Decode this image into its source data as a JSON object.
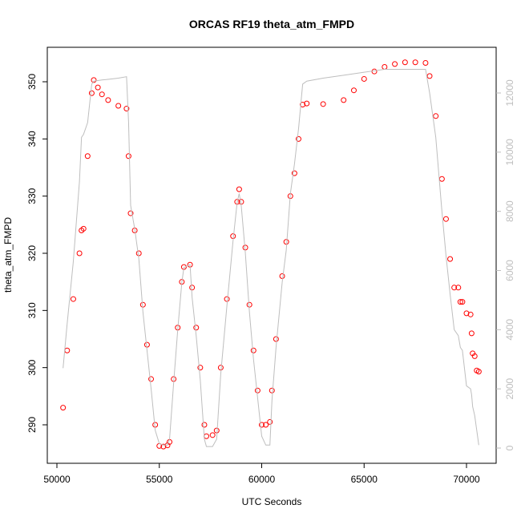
{
  "chart_data": {
    "type": "scatter",
    "title": "ORCAS RF19 theta_atm_FMPD",
    "x_label": "UTC Seconds",
    "y_label": "theta_atm_FMPD",
    "x": [
      50300,
      50500,
      50800,
      51100,
      51200,
      51300,
      51500,
      51700,
      51800,
      52000,
      52200,
      52500,
      53000,
      53400,
      53500,
      53600,
      53800,
      54000,
      54200,
      54400,
      54600,
      54800,
      55000,
      55200,
      55400,
      55500,
      55700,
      55900,
      56100,
      56200,
      56500,
      56600,
      56800,
      57000,
      57200,
      57300,
      57600,
      57800,
      58000,
      58300,
      58600,
      58800,
      58900,
      59000,
      59200,
      59400,
      59600,
      59800,
      60000,
      60200,
      60400,
      60500,
      60700,
      61000,
      61200,
      61400,
      61600,
      61800,
      62000,
      62200,
      63000,
      64000,
      64500,
      65000,
      65500,
      66000,
      66500,
      67000,
      67500,
      68000,
      68200,
      68500,
      68800,
      69000,
      69200,
      69400,
      69600,
      69700,
      69800,
      70000,
      70200,
      70250,
      70300,
      70400,
      70500,
      70600
    ],
    "series": [
      {
        "color": "#ff0000",
        "values": [
          293,
          303,
          312,
          320,
          324,
          324.3,
          337,
          348,
          350.3,
          349,
          347.8,
          346.8,
          345.8,
          345.3,
          337,
          327,
          324,
          320,
          311,
          304,
          298,
          290,
          286.3,
          286.2,
          286.4,
          287,
          298,
          307,
          315,
          317.6,
          318,
          314,
          307,
          300,
          290,
          288,
          288.2,
          289,
          300,
          312,
          323,
          329,
          331.2,
          329,
          321,
          311,
          303,
          296,
          290,
          290,
          290.5,
          296,
          305,
          316,
          322,
          330,
          334,
          340,
          346,
          346.2,
          346.1,
          346.8,
          348.5,
          350.5,
          351.8,
          352.6,
          353.1,
          353.4,
          353.4,
          353.3,
          351,
          344,
          333,
          326,
          319,
          314,
          314,
          311.5,
          311.5,
          309.5,
          309.3,
          306,
          302.5,
          302,
          299.5,
          299.3
        ]
      },
      {
        "color": "#bebebe",
        "axis": "y2",
        "values": [
          2700,
          4200,
          6300,
          9000,
          10500,
          10600,
          11000,
          12300,
          12400,
          12420,
          12440,
          12460,
          12500,
          12550,
          11000,
          8200,
          7400,
          6400,
          4600,
          3300,
          2000,
          600,
          150,
          100,
          100,
          300,
          2200,
          4000,
          5600,
          6100,
          6200,
          5100,
          3800,
          2300,
          300,
          50,
          50,
          300,
          2500,
          4800,
          7000,
          8300,
          8600,
          8200,
          6600,
          4600,
          3000,
          1700,
          400,
          100,
          100,
          1600,
          3400,
          5600,
          6700,
          8600,
          9600,
          10800,
          12300,
          12400,
          12500,
          12600,
          12650,
          12700,
          12750,
          12800,
          12800,
          12800,
          12800,
          12800,
          12000,
          10500,
          8000,
          6500,
          5200,
          4000,
          3800,
          3400,
          3300,
          2100,
          2000,
          1800,
          1400,
          1100,
          600,
          100
        ]
      }
    ],
    "xlim": [
      49530,
      71448
    ],
    "xticks": [
      50000,
      55000,
      60000,
      65000,
      70000
    ],
    "ylim": [
      283.27,
      356.03
    ],
    "yticks": [
      290,
      300,
      310,
      320,
      330,
      340,
      350
    ],
    "y2lim": [
      -515,
      13544
    ],
    "y2ticks": [
      0,
      2000,
      4000,
      6000,
      8000,
      10000,
      12000
    ],
    "y2tick_color": "#bebebe"
  }
}
